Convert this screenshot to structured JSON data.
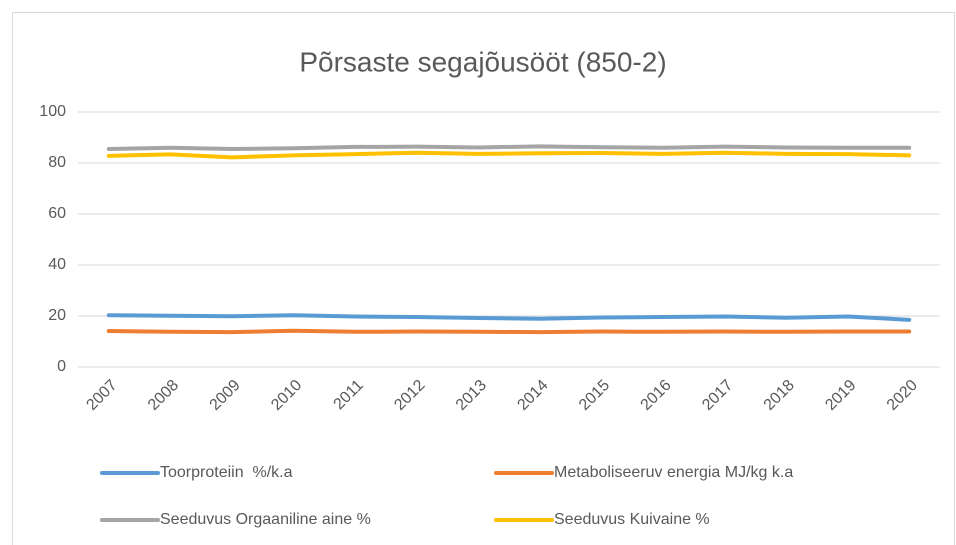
{
  "chart_data": {
    "type": "line",
    "title": "Põrsaste segajõusööt (850-2)",
    "categories": [
      "2007",
      "2008",
      "2009",
      "2010",
      "2011",
      "2012",
      "2013",
      "2014",
      "2015",
      "2016",
      "2017",
      "2018",
      "2019",
      "2020"
    ],
    "series": [
      {
        "name": "Toorproteiin  %/k.a",
        "color": "#5b9bd5",
        "values": [
          20.3,
          20.1,
          19.9,
          20.3,
          19.8,
          19.6,
          19.2,
          18.9,
          19.4,
          19.6,
          19.8,
          19.3,
          19.8,
          18.5
        ]
      },
      {
        "name": "Metaboliseeruv energia MJ/kg k.a",
        "color": "#ed7d31",
        "values": [
          14.1,
          13.8,
          13.7,
          14.2,
          13.8,
          13.9,
          13.8,
          13.7,
          13.9,
          13.8,
          13.9,
          13.8,
          13.9,
          13.9
        ]
      },
      {
        "name": "Seeduvus Orgaaniline aine %",
        "color": "#a5a5a5",
        "values": [
          85.5,
          86,
          85.5,
          85.8,
          86.3,
          86.4,
          86.1,
          86.5,
          86.2,
          86,
          86.4,
          86.1,
          86,
          86
        ]
      },
      {
        "name": "Seeduvus Kuivaine %",
        "color": "#ffc000",
        "values": [
          82.8,
          83.4,
          82.2,
          83,
          83.5,
          84,
          83.6,
          83.8,
          83.9,
          83.6,
          84,
          83.6,
          83.5,
          83
        ]
      }
    ],
    "ylim": [
      0,
      100
    ],
    "yticks": [
      0,
      20,
      40,
      60,
      80,
      100
    ],
    "grid": true,
    "legend": "bottom"
  }
}
